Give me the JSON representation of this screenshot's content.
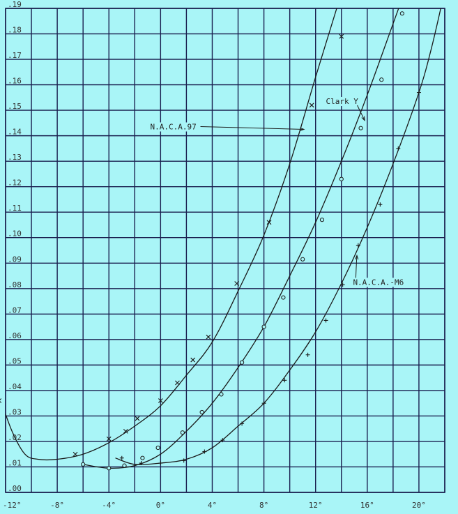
{
  "chart_data": {
    "type": "line",
    "title": "",
    "xlabel": "",
    "ylabel": "",
    "xlim": [
      -12,
      22
    ],
    "ylim": [
      0,
      0.19
    ],
    "grid": true,
    "x_ticks": [
      -12,
      -8,
      -4,
      0,
      4,
      8,
      12,
      16,
      20
    ],
    "x_tick_labels": [
      "-12°",
      "-8°",
      "-4°",
      "0°",
      "4°",
      "8°",
      "12°",
      "16°",
      "20°"
    ],
    "y_ticks": [
      0,
      0.01,
      0.02,
      0.03,
      0.04,
      0.05,
      0.06,
      0.07,
      0.08,
      0.09,
      0.1,
      0.11,
      0.12,
      0.13,
      0.14,
      0.15,
      0.16,
      0.17,
      0.18,
      0.19
    ],
    "y_tick_labels": [
      ".00",
      ".01",
      ".02",
      ".03",
      ".04",
      ".05",
      ".06",
      ".07",
      ".08",
      ".09",
      ".10",
      ".11",
      ".12",
      ".13",
      ".14",
      ".15",
      ".16",
      ".17",
      ".18",
      ".19"
    ],
    "colors": {
      "background": "#a9f5f7",
      "grid": "#1a1f4f",
      "curve": "#1a1a1a"
    },
    "series": [
      {
        "name": "N.A.C.A.97",
        "marker": "x",
        "curve": [
          [
            -12.5,
            0.038
          ],
          [
            -11.5,
            0.024
          ],
          [
            -10.5,
            0.015
          ],
          [
            -9.5,
            0.013
          ],
          [
            -8,
            0.013
          ],
          [
            -6,
            0.015
          ],
          [
            -4,
            0.0195
          ],
          [
            -2,
            0.026
          ],
          [
            0,
            0.034
          ],
          [
            2,
            0.046
          ],
          [
            4,
            0.059
          ],
          [
            6,
            0.079
          ],
          [
            8,
            0.101
          ],
          [
            10,
            0.129
          ],
          [
            12,
            0.163
          ],
          [
            14,
            0.196
          ]
        ],
        "points": [
          [
            -12.5,
            0.036
          ],
          [
            -6.6,
            0.015
          ],
          [
            -4,
            0.021
          ],
          [
            -2.7,
            0.024
          ],
          [
            -1.8,
            0.029
          ],
          [
            0,
            0.036
          ],
          [
            1.3,
            0.043
          ],
          [
            2.5,
            0.052
          ],
          [
            3.7,
            0.061
          ],
          [
            5.9,
            0.082
          ],
          [
            8.4,
            0.106
          ],
          [
            11.7,
            0.152
          ],
          [
            14,
            0.179
          ]
        ]
      },
      {
        "name": "Clark Y",
        "marker": "o",
        "curve": [
          [
            -6,
            0.011
          ],
          [
            -4,
            0.0095
          ],
          [
            -2,
            0.0105
          ],
          [
            0,
            0.015
          ],
          [
            2,
            0.024
          ],
          [
            4,
            0.035
          ],
          [
            6,
            0.049
          ],
          [
            8,
            0.065
          ],
          [
            10,
            0.085
          ],
          [
            12,
            0.106
          ],
          [
            14,
            0.13
          ],
          [
            16,
            0.156
          ],
          [
            18,
            0.184
          ],
          [
            19,
            0.198
          ]
        ],
        "points": [
          [
            -6,
            0.011
          ],
          [
            -4,
            0.0095
          ],
          [
            -2.8,
            0.0105
          ],
          [
            -1.4,
            0.0135
          ],
          [
            -0.2,
            0.0175
          ],
          [
            1.7,
            0.0235
          ],
          [
            3.2,
            0.0315
          ],
          [
            4.7,
            0.0385
          ],
          [
            6.3,
            0.051
          ],
          [
            8,
            0.065
          ],
          [
            9.5,
            0.0765
          ],
          [
            11,
            0.0915
          ],
          [
            12.5,
            0.107
          ],
          [
            14,
            0.123
          ],
          [
            15.5,
            0.143
          ],
          [
            17.1,
            0.162
          ],
          [
            18.7,
            0.188
          ]
        ]
      },
      {
        "name": "N.A.C.A.-M6",
        "marker": "+",
        "curve": [
          [
            -3.5,
            0.0135
          ],
          [
            -2,
            0.011
          ],
          [
            0,
            0.0115
          ],
          [
            2,
            0.013
          ],
          [
            4,
            0.0175
          ],
          [
            6,
            0.026
          ],
          [
            8,
            0.035
          ],
          [
            10,
            0.048
          ],
          [
            12,
            0.063
          ],
          [
            14,
            0.082
          ],
          [
            16,
            0.104
          ],
          [
            18,
            0.129
          ],
          [
            20,
            0.157
          ],
          [
            21,
            0.175
          ],
          [
            22,
            0.197
          ]
        ],
        "points": [
          [
            -3,
            0.0135
          ],
          [
            -1.5,
            0.0115
          ],
          [
            0,
            0.0115
          ],
          [
            1.8,
            0.0125
          ],
          [
            3.4,
            0.016
          ],
          [
            4.8,
            0.0205
          ],
          [
            6.3,
            0.027
          ],
          [
            8,
            0.035
          ],
          [
            9.6,
            0.044
          ],
          [
            11.4,
            0.054
          ],
          [
            12.8,
            0.0675
          ],
          [
            14.1,
            0.0815
          ],
          [
            15.3,
            0.097
          ],
          [
            17,
            0.113
          ],
          [
            18.4,
            0.135
          ],
          [
            20,
            0.157
          ]
        ]
      }
    ],
    "annotations": [
      {
        "text": "N.A.C.A.97",
        "text_x": -0.8,
        "text_y": 0.1425,
        "arrow_to": [
          11.1,
          0.1425
        ]
      },
      {
        "text": "Clark Y",
        "text_x": 12.8,
        "text_y": 0.1525,
        "arrow_to": [
          15.8,
          0.146
        ]
      },
      {
        "text": "N.A.C.A.-M6",
        "text_x": 14.9,
        "text_y": 0.0815,
        "arrow_to": [
          15.2,
          0.093
        ]
      }
    ]
  }
}
